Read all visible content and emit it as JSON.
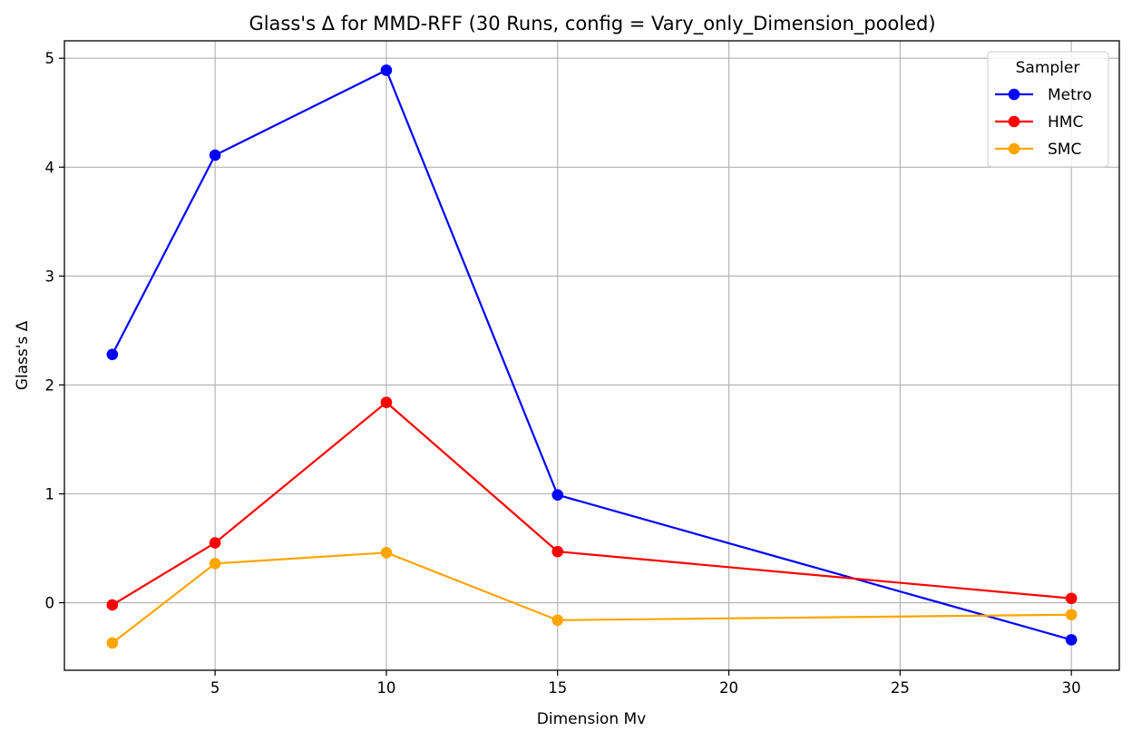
{
  "chart_data": {
    "type": "line",
    "title": "Glass's Δ for MMD-RFF (30 Runs, config = Vary_only_Dimension_pooled)",
    "xlabel": "Dimension Mv",
    "ylabel": "Glass's Δ",
    "x": [
      2,
      5,
      10,
      15,
      30
    ],
    "xlim": [
      0.6,
      31.4
    ],
    "ylim": [
      -0.62,
      5.16
    ],
    "xticks": [
      5,
      10,
      15,
      20,
      25,
      30
    ],
    "yticks": [
      0,
      1,
      2,
      3,
      4,
      5
    ],
    "xtick_labels": [
      "5",
      "10",
      "15",
      "20",
      "25",
      "30"
    ],
    "ytick_labels": [
      "0",
      "1",
      "2",
      "3",
      "4",
      "5"
    ],
    "grid": true,
    "legend": {
      "title": "Sampler",
      "position": "top-right"
    },
    "series": [
      {
        "name": "Metro",
        "color": "#0000ff",
        "values": [
          2.28,
          4.11,
          4.89,
          0.99,
          -0.34
        ]
      },
      {
        "name": "HMC",
        "color": "#ff0000",
        "values": [
          -0.02,
          0.55,
          1.84,
          0.47,
          0.04
        ]
      },
      {
        "name": "SMC",
        "color": "#ffa500",
        "values": [
          -0.37,
          0.36,
          0.46,
          -0.16,
          -0.11
        ]
      }
    ]
  }
}
